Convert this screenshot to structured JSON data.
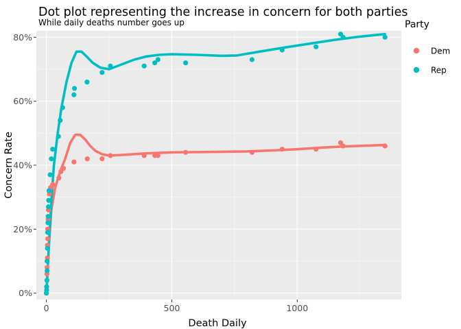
{
  "chart_data": {
    "type": "scatter",
    "title": "Dot plot representing the increase in concern for both parties",
    "subtitle": "While daily deaths number goes up",
    "xlabel": "Death Daily",
    "ylabel": "Concern Rate",
    "xlim": [
      -40,
      1415
    ],
    "ylim": [
      -0.02,
      0.82
    ],
    "x_ticks": [
      0,
      500,
      1000
    ],
    "x_tick_labels": [
      "0",
      "500",
      "1000"
    ],
    "y_ticks": [
      0,
      0.2,
      0.4,
      0.6,
      0.8
    ],
    "y_tick_labels": [
      "0%",
      "20%",
      "40%",
      "60%",
      "80%"
    ],
    "grid": true,
    "legend_title": "Party",
    "legend_position": "right",
    "series": [
      {
        "name": "Dem",
        "color": "#f8766d",
        "points": [
          [
            0,
            0.0
          ],
          [
            1,
            0.01
          ],
          [
            1,
            0.02
          ],
          [
            2,
            0.04
          ],
          [
            2,
            0.06
          ],
          [
            3,
            0.08
          ],
          [
            3,
            0.1
          ],
          [
            4,
            0.11
          ],
          [
            4,
            0.15
          ],
          [
            5,
            0.17
          ],
          [
            5,
            0.2
          ],
          [
            6,
            0.19
          ],
          [
            7,
            0.23
          ],
          [
            8,
            0.26
          ],
          [
            9,
            0.29
          ],
          [
            12,
            0.31
          ],
          [
            17,
            0.33
          ],
          [
            25,
            0.34
          ],
          [
            50,
            0.36
          ],
          [
            58,
            0.38
          ],
          [
            68,
            0.39
          ],
          [
            110,
            0.41
          ],
          [
            163,
            0.42
          ],
          [
            222,
            0.42
          ],
          [
            255,
            0.43
          ],
          [
            390,
            0.43
          ],
          [
            432,
            0.43
          ],
          [
            445,
            0.43
          ],
          [
            555,
            0.44
          ],
          [
            820,
            0.44
          ],
          [
            940,
            0.45
          ],
          [
            1075,
            0.45
          ],
          [
            1173,
            0.47
          ],
          [
            1183,
            0.46
          ],
          [
            1350,
            0.46
          ]
        ],
        "trend": [
          [
            0,
            0.0
          ],
          [
            10,
            0.15
          ],
          [
            20,
            0.26
          ],
          [
            35,
            0.33
          ],
          [
            55,
            0.38
          ],
          [
            75,
            0.42
          ],
          [
            95,
            0.47
          ],
          [
            115,
            0.495
          ],
          [
            135,
            0.495
          ],
          [
            155,
            0.48
          ],
          [
            175,
            0.46
          ],
          [
            195,
            0.445
          ],
          [
            220,
            0.435
          ],
          [
            250,
            0.43
          ],
          [
            300,
            0.432
          ],
          [
            400,
            0.437
          ],
          [
            500,
            0.44
          ],
          [
            600,
            0.441
          ],
          [
            700,
            0.442
          ],
          [
            800,
            0.443
          ],
          [
            900,
            0.446
          ],
          [
            1000,
            0.45
          ],
          [
            1100,
            0.455
          ],
          [
            1200,
            0.459
          ],
          [
            1350,
            0.463
          ]
        ]
      },
      {
        "name": "Rep",
        "color": "#00bfc4",
        "points": [
          [
            0,
            0.0
          ],
          [
            1,
            0.01
          ],
          [
            1,
            0.02
          ],
          [
            2,
            0.04
          ],
          [
            3,
            0.07
          ],
          [
            3,
            0.1
          ],
          [
            4,
            0.14
          ],
          [
            5,
            0.19
          ],
          [
            6,
            0.22
          ],
          [
            7,
            0.24
          ],
          [
            8,
            0.27
          ],
          [
            9,
            0.29
          ],
          [
            10,
            0.32
          ],
          [
            15,
            0.37
          ],
          [
            20,
            0.42
          ],
          [
            25,
            0.45
          ],
          [
            48,
            0.49
          ],
          [
            55,
            0.54
          ],
          [
            65,
            0.58
          ],
          [
            110,
            0.62
          ],
          [
            112,
            0.64
          ],
          [
            162,
            0.66
          ],
          [
            222,
            0.69
          ],
          [
            255,
            0.71
          ],
          [
            390,
            0.71
          ],
          [
            432,
            0.72
          ],
          [
            445,
            0.73
          ],
          [
            555,
            0.72
          ],
          [
            820,
            0.73
          ],
          [
            940,
            0.76
          ],
          [
            1075,
            0.77
          ],
          [
            1173,
            0.81
          ],
          [
            1183,
            0.8
          ],
          [
            1350,
            0.8
          ]
        ],
        "trend": [
          [
            0,
            0.0
          ],
          [
            10,
            0.15
          ],
          [
            20,
            0.29
          ],
          [
            30,
            0.4
          ],
          [
            45,
            0.5
          ],
          [
            60,
            0.58
          ],
          [
            80,
            0.66
          ],
          [
            100,
            0.72
          ],
          [
            120,
            0.755
          ],
          [
            140,
            0.755
          ],
          [
            160,
            0.74
          ],
          [
            185,
            0.72
          ],
          [
            215,
            0.705
          ],
          [
            250,
            0.7
          ],
          [
            300,
            0.715
          ],
          [
            350,
            0.73
          ],
          [
            400,
            0.74
          ],
          [
            450,
            0.745
          ],
          [
            500,
            0.747
          ],
          [
            600,
            0.745
          ],
          [
            700,
            0.742
          ],
          [
            760,
            0.743
          ],
          [
            850,
            0.755
          ],
          [
            950,
            0.768
          ],
          [
            1050,
            0.78
          ],
          [
            1150,
            0.792
          ],
          [
            1250,
            0.802
          ],
          [
            1350,
            0.81
          ]
        ]
      }
    ]
  }
}
